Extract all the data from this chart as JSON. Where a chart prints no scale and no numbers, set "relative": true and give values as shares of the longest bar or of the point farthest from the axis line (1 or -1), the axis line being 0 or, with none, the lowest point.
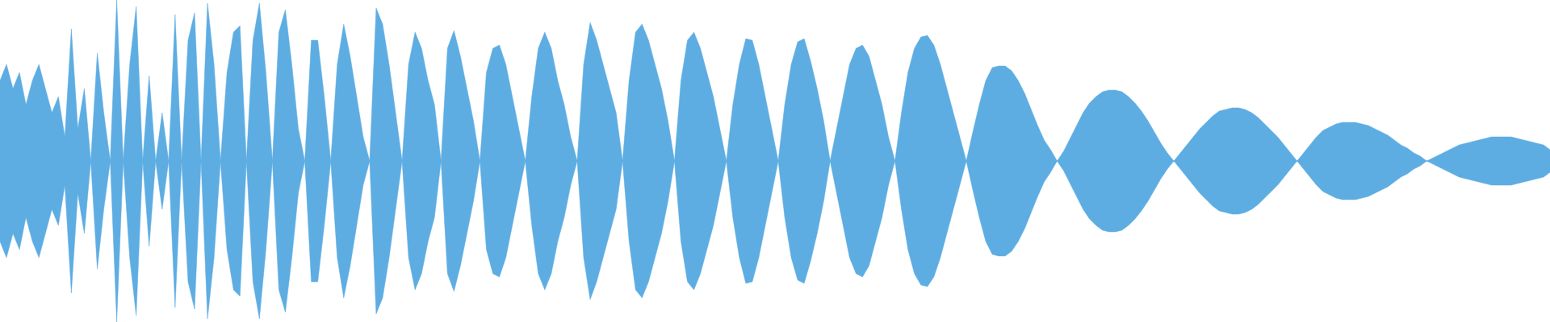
{
  "chart_data": {
    "type": "area",
    "relative": true,
    "ref_lines": [
      {
        "axis": "y",
        "value": 0,
        "color": "#5dade2"
      }
    ],
    "categories": [
      null,
      null,
      null,
      null,
      null,
      null,
      null,
      null,
      null,
      null,
      null,
      null,
      null,
      null,
      null,
      null,
      null,
      null,
      null,
      null,
      null,
      null,
      null,
      null,
      null,
      null,
      null,
      null,
      null,
      null,
      null,
      null,
      null,
      null,
      null,
      null,
      null,
      null,
      null,
      null,
      null,
      null,
      null,
      null,
      null,
      null,
      null,
      null,
      null,
      null,
      null,
      null,
      null,
      null,
      null,
      null,
      null,
      null,
      null,
      null,
      null,
      null,
      null,
      null,
      null,
      null,
      null,
      null,
      null,
      null,
      null,
      null,
      null,
      null,
      null,
      null,
      null,
      null,
      null,
      null,
      null,
      null,
      null,
      null,
      null,
      null,
      null,
      null,
      null,
      null,
      null,
      null,
      null,
      null,
      null,
      null,
      null,
      null,
      null,
      null,
      null,
      null,
      null,
      null,
      null,
      null,
      null,
      null,
      null,
      null,
      null,
      null,
      null,
      null,
      null,
      null,
      null,
      null,
      null,
      null,
      null,
      null,
      null,
      null,
      null,
      null,
      null,
      null,
      null,
      null,
      null,
      null,
      null,
      null,
      null,
      null,
      null,
      null,
      null,
      null,
      null,
      null,
      null,
      null,
      null,
      null,
      null,
      null,
      null,
      null,
      null,
      null,
      null,
      null,
      null,
      null,
      null,
      null,
      null,
      null,
      null,
      null,
      null,
      null,
      null,
      null,
      null,
      null,
      null,
      null,
      null,
      null,
      null,
      null,
      null,
      null,
      null,
      null,
      null,
      null,
      null,
      null,
      null,
      null,
      null,
      null,
      null,
      null,
      null,
      null,
      null,
      null,
      null,
      null,
      null,
      null,
      null,
      null,
      null,
      null,
      null,
      null,
      null,
      null,
      null,
      null,
      null,
      null,
      null,
      null,
      null,
      null,
      null,
      null,
      null,
      null,
      null,
      null,
      null,
      null,
      null,
      null,
      null,
      null,
      null,
      null,
      null,
      null,
      null,
      null,
      null,
      null,
      null,
      null,
      null,
      null,
      null,
      null,
      null,
      null
    ],
    "series": [
      {
        "color": "#5dade2",
        "values": [
          0.5,
          0.6,
          0.45,
          0.55,
          0.35,
          0.5,
          0.6,
          0.45,
          0.3,
          0.4,
          0.15,
          0.82,
          0.2,
          0.45,
          0,
          0.67,
          0.3,
          0,
          1,
          0,
          0.6,
          0.96,
          0,
          0.53,
          0,
          0.3,
          0,
          0.91,
          0,
          0.75,
          0.92,
          0,
          0.98,
          0.6,
          0,
          0.55,
          0.8,
          0.84,
          0,
          0.75,
          0.98,
          0.55,
          0,
          0.8,
          0.94,
          0.6,
          0.2,
          0,
          0.75,
          0.75,
          0.4,
          0,
          0.6,
          0.85,
          0.65,
          0.4,
          0.15,
          0,
          0.95,
          0.85,
          0.6,
          0.3,
          0,
          0.6,
          0.8,
          0.7,
          0.5,
          0.35,
          0,
          0.7,
          0.81,
          0.65,
          0.45,
          0.25,
          0,
          0.55,
          0.7,
          0.72,
          0.6,
          0.4,
          0.2,
          0,
          0.4,
          0.7,
          0.8,
          0.7,
          0.5,
          0.35,
          0.15,
          0,
          0.6,
          0.86,
          0.75,
          0.6,
          0.45,
          0.3,
          0,
          0.5,
          0.8,
          0.85,
          0.75,
          0.6,
          0.45,
          0.25,
          0,
          0.5,
          0.75,
          0.8,
          0.7,
          0.55,
          0.4,
          0.2,
          0,
          0.35,
          0.6,
          0.76,
          0.75,
          0.6,
          0.4,
          0.2,
          0,
          0.35,
          0.6,
          0.74,
          0.76,
          0.62,
          0.45,
          0.25,
          0,
          0.2,
          0.4,
          0.6,
          0.7,
          0.72,
          0.65,
          0.5,
          0.35,
          0.15,
          0,
          0.3,
          0.55,
          0.7,
          0.77,
          0.78,
          0.72,
          0.6,
          0.45,
          0.3,
          0.15,
          0,
          0.18,
          0.35,
          0.5,
          0.58,
          0.59,
          0.59,
          0.56,
          0.5,
          0.42,
          0.32,
          0.22,
          0.13,
          0.07,
          0,
          0.06,
          0.14,
          0.22,
          0.3,
          0.36,
          0.4,
          0.43,
          0.44,
          0.44,
          0.43,
          0.4,
          0.36,
          0.31,
          0.25,
          0.18,
          0.11,
          0.05,
          0,
          0.05,
          0.1,
          0.15,
          0.2,
          0.24,
          0.28,
          0.31,
          0.32,
          0.33,
          0.33,
          0.32,
          0.3,
          0.27,
          0.23,
          0.19,
          0.15,
          0.1,
          0.05,
          0,
          0.05,
          0.1,
          0.15,
          0.19,
          0.21,
          0.23,
          0.24,
          0.24,
          0.24,
          0.23,
          0.22,
          0.2,
          0.18,
          0.16,
          0.13,
          0.1,
          0.08,
          0.05,
          0.03,
          0,
          0.02,
          0.04,
          0.06,
          0.08,
          0.1,
          0.11,
          0.12,
          0.13,
          0.14,
          0.15,
          0.15,
          0.15,
          0.15,
          0.14,
          0.13,
          0.12,
          0.11,
          0.1,
          0.07
        ]
      },
      {
        "color": "#5dade2",
        "values": [
          -0.5,
          -0.6,
          -0.45,
          -0.55,
          -0.35,
          -0.5,
          -0.6,
          -0.45,
          -0.3,
          -0.4,
          -0.15,
          -0.82,
          -0.2,
          -0.45,
          0,
          -0.67,
          -0.3,
          0,
          -1,
          0,
          -0.6,
          -0.96,
          0,
          -0.53,
          0,
          -0.3,
          0,
          -0.91,
          0,
          -0.75,
          -0.92,
          0,
          -0.98,
          -0.6,
          0,
          -0.55,
          -0.8,
          -0.84,
          0,
          -0.75,
          -0.98,
          -0.55,
          0,
          -0.8,
          -0.94,
          -0.6,
          -0.2,
          0,
          -0.75,
          -0.75,
          -0.4,
          0,
          -0.6,
          -0.85,
          -0.65,
          -0.4,
          -0.15,
          0,
          -0.95,
          -0.85,
          -0.6,
          -0.3,
          0,
          -0.6,
          -0.8,
          -0.7,
          -0.5,
          -0.35,
          0,
          -0.7,
          -0.81,
          -0.65,
          -0.45,
          -0.25,
          0,
          -0.55,
          -0.7,
          -0.72,
          -0.6,
          -0.4,
          -0.2,
          0,
          -0.4,
          -0.7,
          -0.8,
          -0.7,
          -0.5,
          -0.35,
          -0.15,
          0,
          -0.6,
          -0.86,
          -0.75,
          -0.6,
          -0.45,
          -0.3,
          0,
          -0.5,
          -0.8,
          -0.85,
          -0.75,
          -0.6,
          -0.45,
          -0.25,
          0,
          -0.5,
          -0.75,
          -0.8,
          -0.7,
          -0.55,
          -0.4,
          -0.2,
          0,
          -0.35,
          -0.6,
          -0.76,
          -0.75,
          -0.6,
          -0.4,
          -0.2,
          0,
          -0.35,
          -0.6,
          -0.74,
          -0.76,
          -0.62,
          -0.45,
          -0.25,
          0,
          -0.2,
          -0.4,
          -0.6,
          -0.7,
          -0.72,
          -0.65,
          -0.5,
          -0.35,
          -0.15,
          0,
          -0.3,
          -0.55,
          -0.7,
          -0.77,
          -0.78,
          -0.72,
          -0.6,
          -0.45,
          -0.3,
          -0.15,
          0,
          -0.18,
          -0.35,
          -0.5,
          -0.58,
          -0.59,
          -0.59,
          -0.56,
          -0.5,
          -0.42,
          -0.32,
          -0.22,
          -0.13,
          -0.07,
          0,
          -0.06,
          -0.14,
          -0.22,
          -0.3,
          -0.36,
          -0.4,
          -0.43,
          -0.44,
          -0.44,
          -0.43,
          -0.4,
          -0.36,
          -0.31,
          -0.25,
          -0.18,
          -0.11,
          -0.05,
          0,
          -0.05,
          -0.1,
          -0.15,
          -0.2,
          -0.24,
          -0.28,
          -0.31,
          -0.32,
          -0.33,
          -0.33,
          -0.32,
          -0.3,
          -0.27,
          -0.23,
          -0.19,
          -0.15,
          -0.1,
          -0.05,
          0,
          -0.05,
          -0.1,
          -0.15,
          -0.19,
          -0.21,
          -0.23,
          -0.24,
          -0.24,
          -0.24,
          -0.23,
          -0.22,
          -0.2,
          -0.18,
          -0.16,
          -0.13,
          -0.1,
          -0.08,
          -0.05,
          -0.03,
          0,
          -0.02,
          -0.04,
          -0.06,
          -0.08,
          -0.1,
          -0.11,
          -0.12,
          -0.13,
          -0.14,
          -0.15,
          -0.15,
          -0.15,
          -0.15,
          -0.14,
          -0.13,
          -0.12,
          -0.11,
          -0.1,
          -0.07
        ]
      }
    ]
  }
}
